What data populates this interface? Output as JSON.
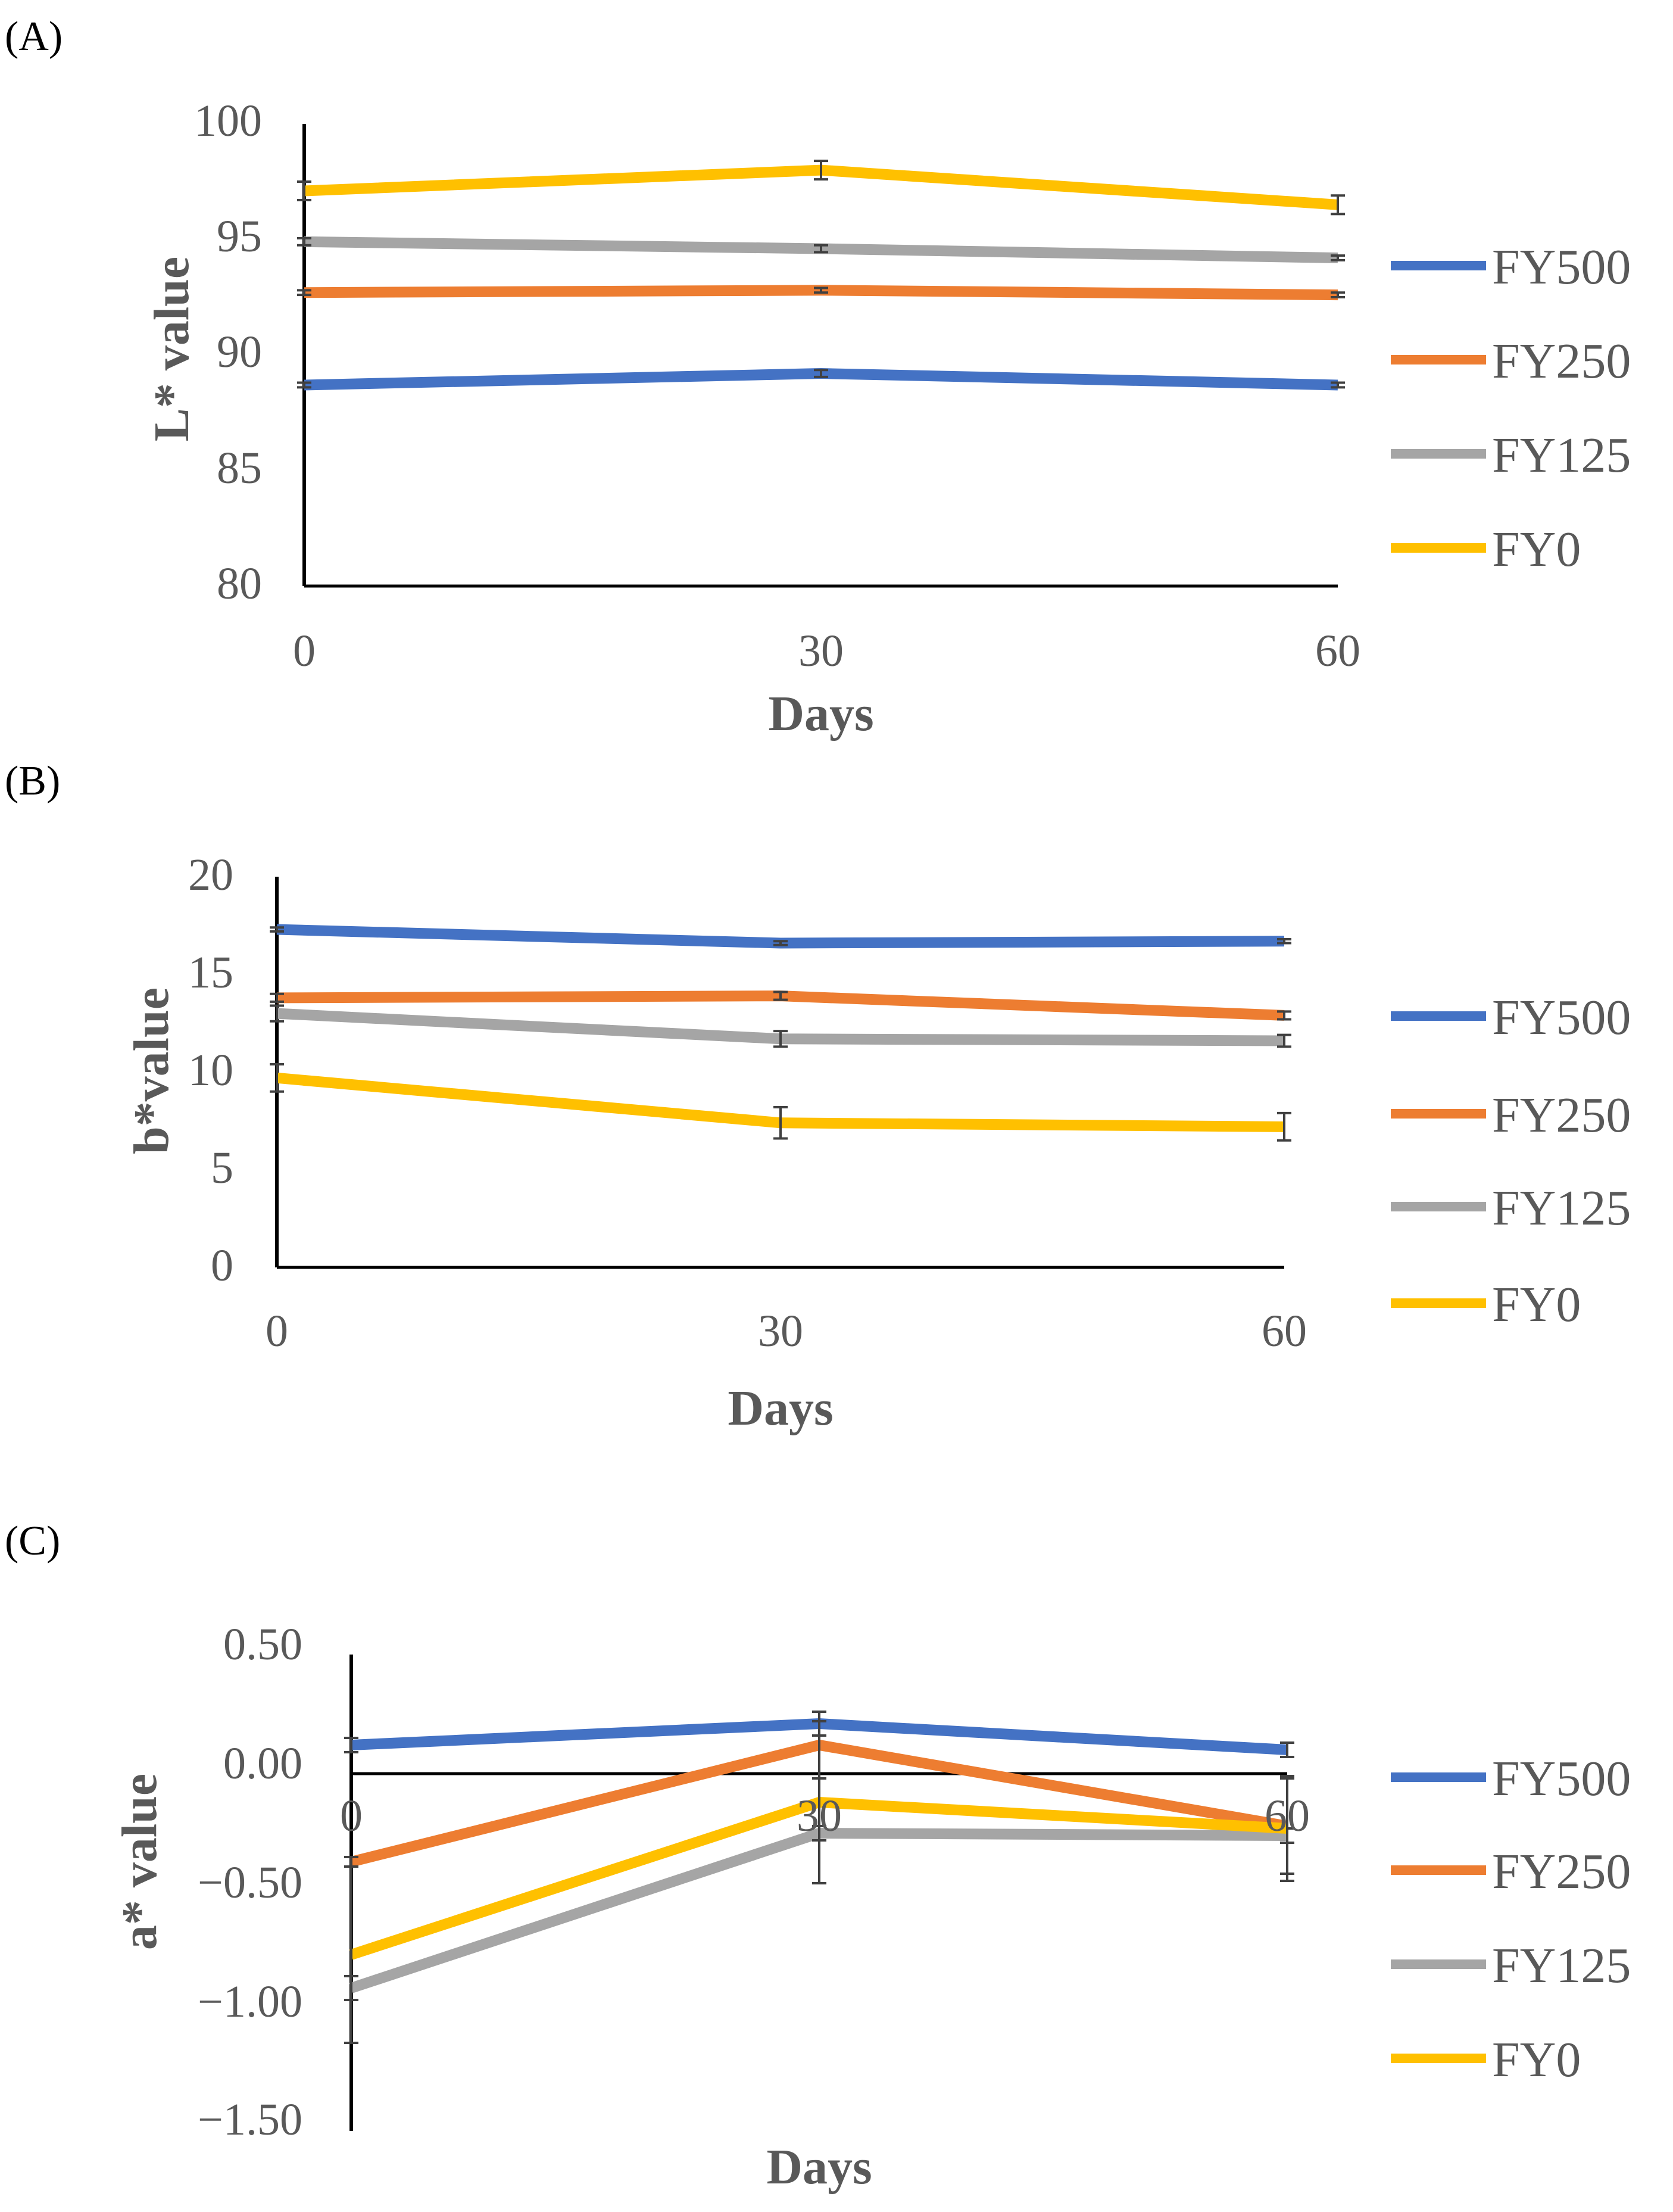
{
  "figure": {
    "panels": [
      "A",
      "B",
      "C"
    ]
  },
  "chart_data": [
    {
      "type": "line",
      "panel_label": "(A)",
      "panel_letter": "A",
      "xlabel": "Days",
      "ylabel": "L* value",
      "x": [
        0,
        30,
        60
      ],
      "x_ticks": [
        "0",
        "30",
        "60"
      ],
      "ylim": [
        80,
        100
      ],
      "y_ticks": [
        80,
        85,
        90,
        95,
        100
      ],
      "y_tick_labels": [
        "80",
        "85",
        "90",
        "95",
        "100"
      ],
      "legend_position": "right",
      "series": [
        {
          "name": "FY500",
          "color": "#4472C4",
          "values": [
            88.7,
            89.2,
            88.7
          ],
          "errors": [
            0.1,
            0.15,
            0.1
          ]
        },
        {
          "name": "FY250",
          "color": "#ED7D31",
          "values": [
            92.7,
            92.8,
            92.6
          ],
          "errors": [
            0.1,
            0.1,
            0.1
          ]
        },
        {
          "name": "FY125",
          "color": "#A5A5A5",
          "values": [
            94.9,
            94.6,
            94.2
          ],
          "errors": [
            0.15,
            0.15,
            0.1
          ]
        },
        {
          "name": "FY0",
          "color": "#FFC000",
          "values": [
            97.1,
            98.0,
            96.5
          ],
          "errors": [
            0.4,
            0.4,
            0.4
          ]
        }
      ]
    },
    {
      "type": "line",
      "panel_label": "(B)",
      "panel_letter": "B",
      "xlabel": "Days",
      "ylabel": "b*value",
      "x": [
        0,
        30,
        60
      ],
      "x_ticks": [
        "0",
        "30",
        "60"
      ],
      "ylim": [
        0,
        20
      ],
      "y_ticks": [
        0,
        5,
        10,
        15,
        20
      ],
      "y_tick_labels": [
        "0",
        "5",
        "10",
        "15",
        "20"
      ],
      "legend_position": "right",
      "series": [
        {
          "name": "FY500",
          "color": "#4472C4",
          "values": [
            17.3,
            16.6,
            16.7
          ],
          "errors": [
            0.1,
            0.1,
            0.1
          ]
        },
        {
          "name": "FY250",
          "color": "#ED7D31",
          "values": [
            13.8,
            13.9,
            12.9
          ],
          "errors": [
            0.2,
            0.2,
            0.2
          ]
        },
        {
          "name": "FY125",
          "color": "#A5A5A5",
          "values": [
            13.0,
            11.7,
            11.6
          ],
          "errors": [
            0.4,
            0.4,
            0.3
          ]
        },
        {
          "name": "FY0",
          "color": "#FFC000",
          "values": [
            9.7,
            7.4,
            7.2
          ],
          "errors": [
            0.7,
            0.8,
            0.7
          ]
        }
      ]
    },
    {
      "type": "line",
      "panel_label": "(C)",
      "panel_letter": "C",
      "xlabel": "Days",
      "ylabel": "a* value",
      "x": [
        0,
        30,
        60
      ],
      "x_ticks": [
        "0",
        "30",
        "60"
      ],
      "ylim": [
        -1.5,
        0.5
      ],
      "y_ticks": [
        -1.5,
        -1.0,
        -0.5,
        0.0,
        0.5
      ],
      "y_tick_labels": [
        "−1.50",
        "−1.00",
        "−0.50",
        "0.00",
        "0.50"
      ],
      "legend_position": "right",
      "series": [
        {
          "name": "FY500",
          "color": "#4472C4",
          "values": [
            0.12,
            0.21,
            0.1
          ],
          "errors": [
            0.03,
            0.05,
            0.03
          ]
        },
        {
          "name": "FY250",
          "color": "#ED7D31",
          "values": [
            -0.37,
            0.12,
            -0.22
          ],
          "errors": [
            0.02,
            0.14,
            0.2
          ]
        },
        {
          "name": "FY125",
          "color": "#A5A5A5",
          "values": [
            -0.9,
            -0.25,
            -0.26
          ],
          "errors": [
            0.05,
            0.03,
            0.03
          ]
        },
        {
          "name": "FY0",
          "color": "#FFC000",
          "values": [
            -0.76,
            -0.12,
            -0.23
          ],
          "errors": [
            0.37,
            0.34,
            0.22
          ]
        }
      ]
    }
  ]
}
